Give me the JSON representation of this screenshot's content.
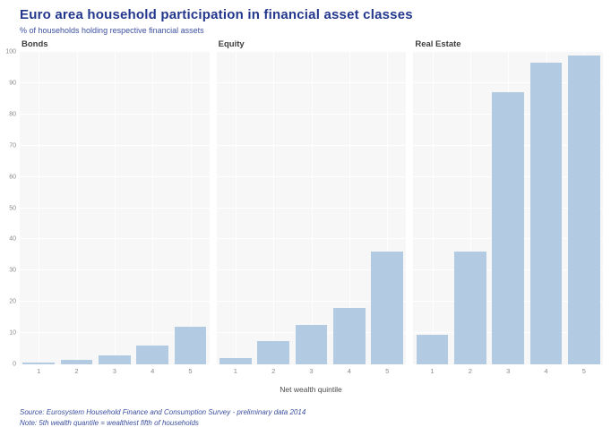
{
  "title": "Euro area household participation in financial asset classes",
  "subtitle": "% of households holding respective financial assets",
  "x_axis_label": "Net wealth quintile",
  "footnotes": {
    "source": "Source: Eurosystem Household Finance and Consumption Survey - preliminary data 2014",
    "note": "Note: 5th wealth quantile = wealthiest fifth of households"
  },
  "colors": {
    "title_text": "#23378c",
    "subtitle_text": "#3c50a0",
    "footnote_text": "#3c50a0",
    "panel_title_text": "#3d3d3d",
    "axis_tick_text": "#8a8a8a",
    "bar_fill": "#b2cbe2",
    "panel_background": "#f7f7f7",
    "gridline": "#ffffff",
    "page_background": "#ffffff"
  },
  "chart_data": {
    "type": "bar",
    "layout": "three small-multiple panels side by side, shared y axis at far left, light gray panel backgrounds, white gridlines, no legend",
    "title": "Euro area household participation in financial asset classes",
    "subtitle": "% of households holding respective financial assets",
    "xlabel": "Net wealth quintile",
    "ylabel": "% of households",
    "ylim": [
      0,
      100
    ],
    "y_ticks": [
      0,
      10,
      20,
      30,
      40,
      50,
      60,
      70,
      80,
      90,
      100
    ],
    "categories": [
      "1",
      "2",
      "3",
      "4",
      "5"
    ],
    "series": [
      {
        "name": "Bonds",
        "values": [
          0.5,
          1.5,
          3,
          6,
          12
        ]
      },
      {
        "name": "Equity",
        "values": [
          2,
          7.5,
          12.5,
          18,
          36
        ]
      },
      {
        "name": "Real Estate",
        "values": [
          9.5,
          36,
          87,
          96.5,
          99
        ]
      }
    ]
  }
}
